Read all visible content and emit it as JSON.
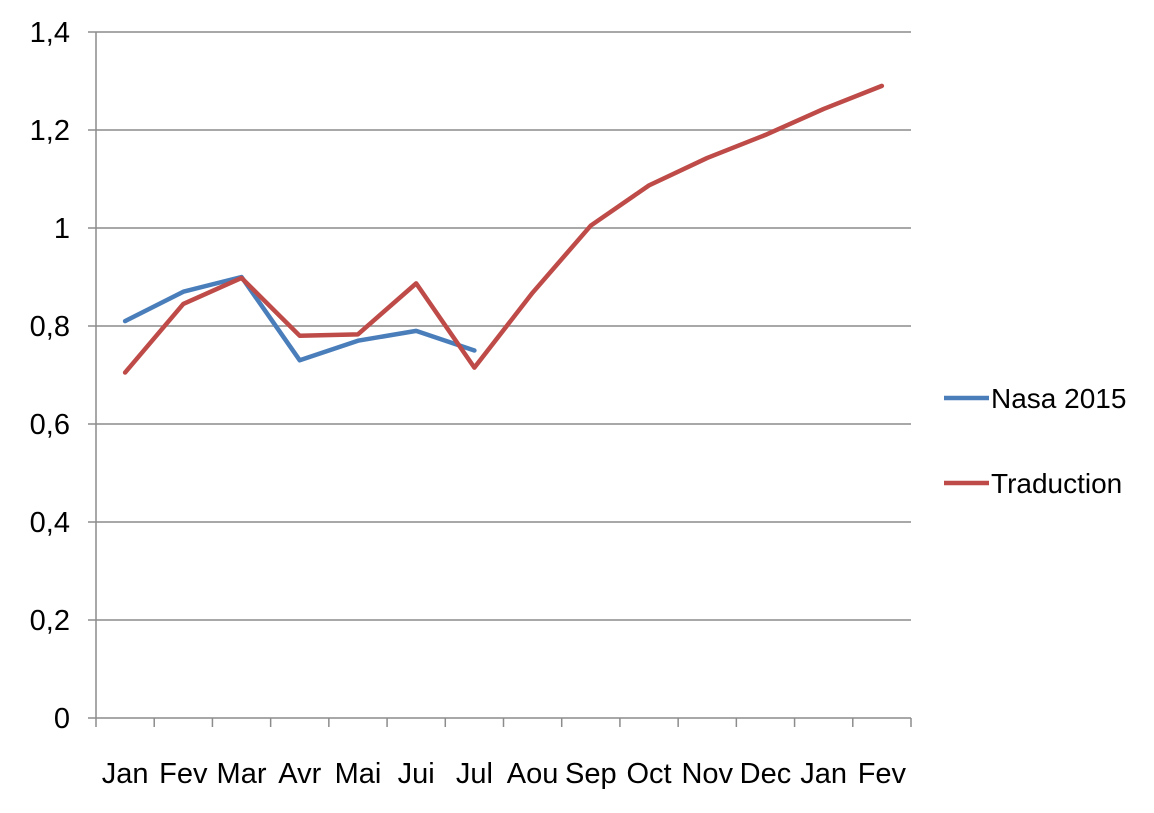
{
  "chart_data": {
    "type": "line",
    "title": "",
    "xlabel": "",
    "ylabel": "",
    "categories": [
      "Jan",
      "Fev",
      "Mar",
      "Avr",
      "Mai",
      "Jui",
      "Jul",
      "Aou",
      "Sep",
      "Oct",
      "Nov",
      "Dec",
      "Jan",
      "Fev"
    ],
    "y_ticks": [
      "0",
      "0,2",
      "0,4",
      "0,6",
      "0,8",
      "1",
      "1,2",
      "1,4"
    ],
    "ylim": [
      0,
      1.4
    ],
    "grid": true,
    "legend_position": "right",
    "series": [
      {
        "name": "Nasa 2015",
        "color": "#4a7ebb",
        "values": [
          0.81,
          0.87,
          0.9,
          0.73,
          0.77,
          0.79,
          0.75,
          null,
          null,
          null,
          null,
          null,
          null,
          null
        ]
      },
      {
        "name": "Traduction",
        "color": "#be4b48",
        "values": [
          0.705,
          0.845,
          0.898,
          0.78,
          0.783,
          0.887,
          0.715,
          0.868,
          1.005,
          1.087,
          1.143,
          1.19,
          1.243,
          1.29
        ]
      }
    ]
  }
}
